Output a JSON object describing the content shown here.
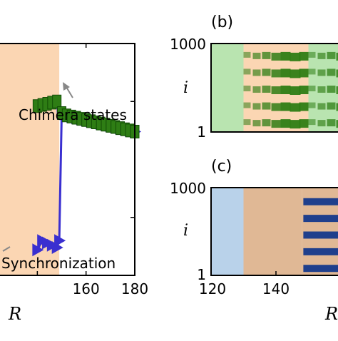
{
  "panels": {
    "b": {
      "label": "(b)"
    },
    "c": {
      "label": "(c)"
    }
  },
  "labels": {
    "chimera": "Chimera states",
    "sync": "Synchronization"
  },
  "colors": {
    "green": "#2e7d14",
    "blue": "#3a2fd0",
    "orange_band": "#fbd6b3",
    "light_green": "#b9e4b0",
    "light_blue": "#b9d2ea",
    "tan": "#e0b895",
    "dark_blue": "#1f3f8c"
  },
  "chart_data": [
    {
      "type": "scatter",
      "panel": "a",
      "xlabel": "R",
      "ylabel": "",
      "xlim": [
        140,
        180
      ],
      "x_ticks": [
        "160",
        "180"
      ],
      "shaded_region_x": [
        140,
        149
      ],
      "series": [
        {
          "color": "green",
          "marker": "square",
          "x": [
            140,
            142,
            144,
            146,
            148,
            150,
            152,
            154,
            156,
            158,
            160,
            162,
            164,
            166,
            168,
            170,
            172,
            174,
            176,
            178,
            180
          ],
          "y": [
            0.73,
            0.735,
            0.74,
            0.745,
            0.75,
            0.7,
            0.69,
            0.685,
            0.68,
            0.675,
            0.67,
            0.665,
            0.66,
            0.655,
            0.65,
            0.645,
            0.64,
            0.635,
            0.63,
            0.625,
            0.62
          ]
        },
        {
          "color": "blue",
          "marker": "triangle",
          "x": [
            140,
            142,
            144,
            146,
            148,
            149,
            150,
            152,
            154,
            156,
            158,
            160,
            162,
            164,
            166,
            168,
            170,
            172,
            174,
            176,
            178,
            180
          ],
          "y": [
            0.11,
            0.15,
            0.14,
            0.13,
            0.12,
            0.15,
            0.7,
            0.69,
            0.685,
            0.68,
            0.675,
            0.67,
            0.665,
            0.66,
            0.655,
            0.65,
            0.645,
            0.64,
            0.635,
            0.63,
            0.625,
            0.62
          ]
        }
      ]
    },
    {
      "type": "heatmap",
      "panel": "b",
      "ylabel": "i",
      "y_ticks": [
        "1000",
        "1"
      ],
      "xlim": [
        120,
        160
      ],
      "regions": [
        {
          "from": 120,
          "to": 130,
          "color": "light_green",
          "pattern": "uniform"
        },
        {
          "from": 130,
          "to": 150,
          "color": "orange_band",
          "pattern": "stripes-green"
        },
        {
          "from": 150,
          "to": 160,
          "color": "light_green",
          "pattern": "stripes-green"
        }
      ]
    },
    {
      "type": "heatmap",
      "panel": "c",
      "xlabel": "R",
      "ylabel": "i",
      "y_ticks": [
        "1000",
        "1"
      ],
      "x_ticks": [
        "120",
        "140"
      ],
      "xlim": [
        120,
        160
      ],
      "regions": [
        {
          "from": 120,
          "to": 130,
          "color": "light_blue",
          "pattern": "uniform"
        },
        {
          "from": 130,
          "to": 148,
          "color": "tan",
          "pattern": "uniform"
        },
        {
          "from": 148,
          "to": 160,
          "color": "tan",
          "pattern": "stripes-blue"
        }
      ]
    }
  ]
}
